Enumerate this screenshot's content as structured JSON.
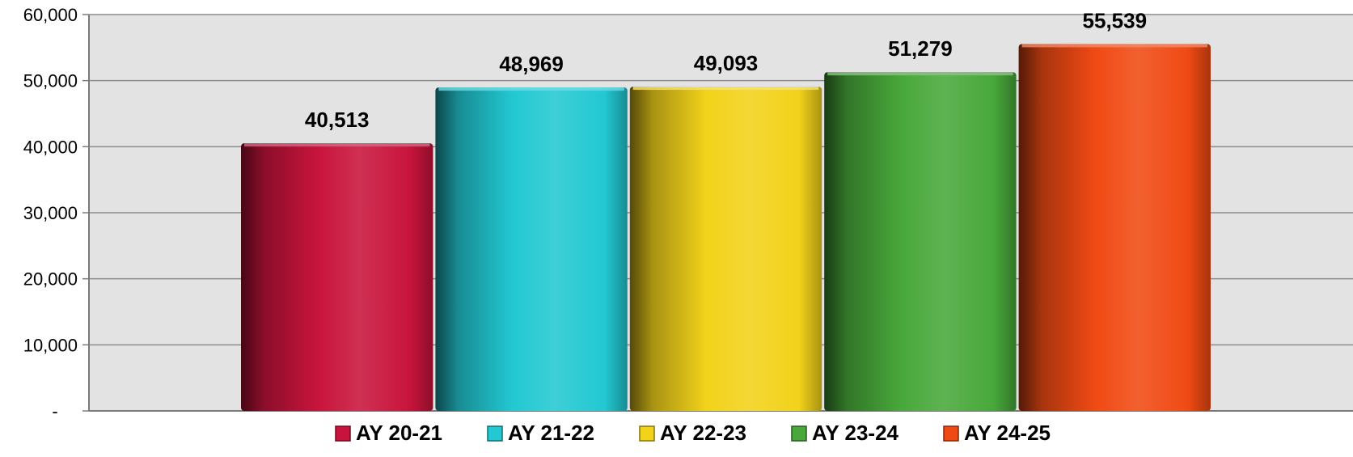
{
  "chart_data": {
    "type": "bar",
    "title": "",
    "xlabel": "",
    "ylabel": "",
    "ylim": [
      0,
      60000
    ],
    "yticks": [
      0,
      10000,
      20000,
      30000,
      40000,
      50000,
      60000
    ],
    "ytick_labels": [
      "-",
      "10,000",
      "20,000",
      "30,000",
      "40,000",
      "50,000",
      "60,000"
    ],
    "grid": "horizontal",
    "legend_position": "bottom",
    "categories": [
      "AY 20-21",
      "AY 21-22",
      "AY 22-23",
      "AY 23-24",
      "AY 24-25"
    ],
    "values": [
      40513,
      48969,
      49093,
      51279,
      55539
    ],
    "data_labels": [
      "40,513",
      "48,969",
      "49,093",
      "51,279",
      "55,539"
    ],
    "colors": [
      "#c8143c",
      "#22c8d2",
      "#f2d21a",
      "#48a83a",
      "#f04a14"
    ]
  }
}
